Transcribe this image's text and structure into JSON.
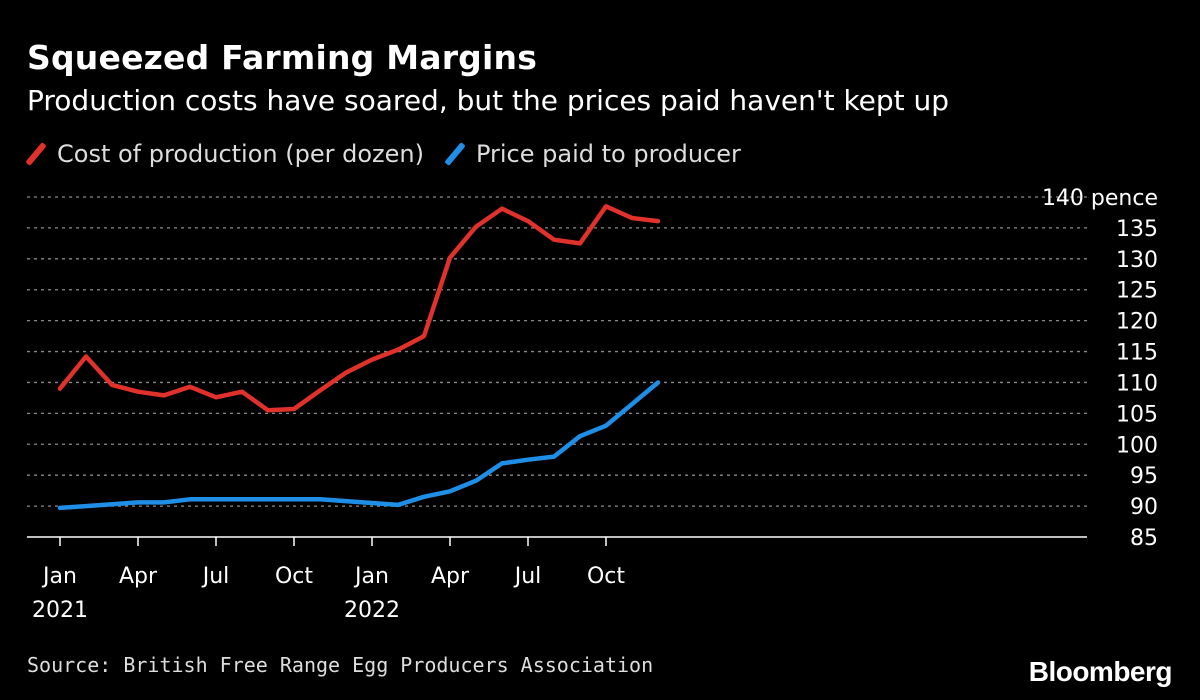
{
  "header": {
    "title": "Squeezed Farming Margins",
    "subtitle": "Production costs have soared, but the prices paid haven't kept up"
  },
  "legend": {
    "items": [
      {
        "label": "Cost of production (per dozen)",
        "color": "#e0312b"
      },
      {
        "label": "Price paid to producer",
        "color": "#1f8ee6"
      }
    ]
  },
  "chart_data": {
    "type": "line",
    "title": "Squeezed Farming Margins",
    "subtitle": "Production costs have soared, but the prices paid haven't kept up",
    "xlabel": "",
    "ylabel": "pence",
    "ylim": [
      85,
      140
    ],
    "yticks": [
      85,
      90,
      95,
      100,
      105,
      110,
      115,
      120,
      125,
      130,
      135,
      140
    ],
    "ytick_labels": [
      "85",
      "90",
      "95",
      "100",
      "105",
      "110",
      "115",
      "120",
      "125",
      "130",
      "135",
      "140 pence"
    ],
    "grid": true,
    "x": [
      "2021-01",
      "2021-02",
      "2021-03",
      "2021-04",
      "2021-05",
      "2021-06",
      "2021-07",
      "2021-08",
      "2021-09",
      "2021-10",
      "2021-11",
      "2021-12",
      "2022-01",
      "2022-02",
      "2022-03",
      "2022-04",
      "2022-05",
      "2022-06",
      "2022-07",
      "2022-08",
      "2022-09",
      "2022-10",
      "2022-11",
      "2022-12"
    ],
    "xticks": [
      {
        "month_index": 0,
        "label": "Jan",
        "sublabel": "2021"
      },
      {
        "month_index": 3,
        "label": "Apr",
        "sublabel": ""
      },
      {
        "month_index": 6,
        "label": "Jul",
        "sublabel": ""
      },
      {
        "month_index": 9,
        "label": "Oct",
        "sublabel": ""
      },
      {
        "month_index": 12,
        "label": "Jan",
        "sublabel": "2022"
      },
      {
        "month_index": 15,
        "label": "Apr",
        "sublabel": ""
      },
      {
        "month_index": 18,
        "label": "Jul",
        "sublabel": ""
      },
      {
        "month_index": 21,
        "label": "Oct",
        "sublabel": ""
      }
    ],
    "series": [
      {
        "name": "Cost of production (per dozen)",
        "color": "#e0312b",
        "values": [
          109.0,
          114.2,
          109.6,
          108.5,
          107.9,
          109.3,
          107.6,
          108.5,
          105.5,
          105.7,
          108.7,
          111.6,
          113.7,
          115.3,
          117.5,
          130.2,
          135.2,
          138.1,
          136.1,
          133.1,
          132.5,
          138.5,
          136.6,
          136.1
        ]
      },
      {
        "name": "Price paid to producer",
        "color": "#1f8ee6",
        "values": [
          89.7,
          90.0,
          90.3,
          90.6,
          90.6,
          91.1,
          91.1,
          91.1,
          91.1,
          91.1,
          91.1,
          90.8,
          90.5,
          90.2,
          91.5,
          92.4,
          94.1,
          96.9,
          97.5,
          98.0,
          101.3,
          103.0,
          106.5,
          110.0
        ]
      }
    ]
  },
  "footer": {
    "source": "Source: British Free Range Egg Producers Association",
    "brand": "Bloomberg"
  }
}
